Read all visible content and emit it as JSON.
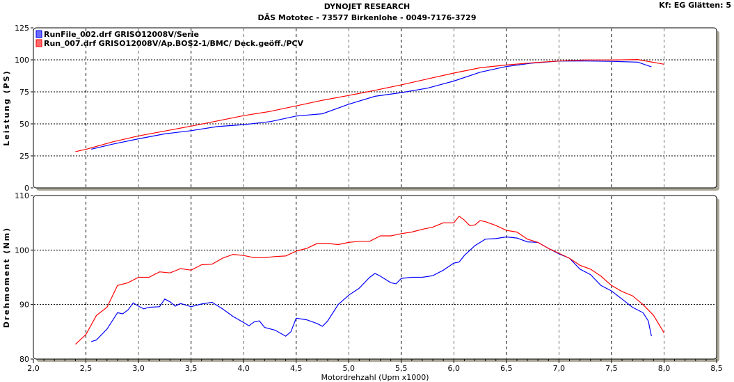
{
  "header": {
    "title": "DYNOJET RESEARCH",
    "subtitle": "DÄS Mototec - 73577 Birkenlohe  - 0049-7176-3729",
    "info": "Kf: EG  Glätten: 5"
  },
  "chart_data": [
    {
      "type": "line",
      "title": "Leistung",
      "ylabel": "Leistung (PS)",
      "xlabel": "Motordrehzahl (Upm x1000)",
      "xlim": [
        2.0,
        8.5
      ],
      "ylim": [
        0,
        125
      ],
      "yticks": [
        "0",
        "25",
        "50",
        "75",
        "100",
        "125"
      ],
      "ytick_values": [
        0,
        25,
        50,
        75,
        100,
        125
      ],
      "grid": true,
      "legend_position": "top-left",
      "series": [
        {
          "name": "RunFile_002.drf GRISO12008V/Serie",
          "color": "#0000ff",
          "x": [
            2.55,
            2.75,
            3.0,
            3.25,
            3.5,
            3.75,
            4.0,
            4.25,
            4.5,
            4.75,
            5.0,
            5.25,
            5.5,
            5.75,
            6.0,
            6.25,
            6.5,
            6.75,
            7.0,
            7.25,
            7.5,
            7.75,
            7.88
          ],
          "y": [
            30.2,
            34.1,
            38.3,
            42.2,
            44.7,
            47.9,
            49.4,
            51.7,
            56.1,
            57.9,
            65.3,
            71.5,
            74.4,
            77.9,
            83.4,
            90.3,
            94.8,
            97.5,
            99.0,
            99.1,
            98.8,
            98.2,
            94.5
          ]
        },
        {
          "name": "Run_007.drf GRISO12008V/Ap.BOS2-1/BMC/ Deck.geöff./PCV",
          "color": "#ff0000",
          "x": [
            2.4,
            2.5,
            2.75,
            3.0,
            3.25,
            3.5,
            3.75,
            4.0,
            4.25,
            4.5,
            4.75,
            5.0,
            5.25,
            5.5,
            5.75,
            6.0,
            6.25,
            6.5,
            6.75,
            7.0,
            7.25,
            7.5,
            7.75,
            8.0
          ],
          "y": [
            28.3,
            30.1,
            35.8,
            40.6,
            44.4,
            48.2,
            52.3,
            56.4,
            59.7,
            64.0,
            68.4,
            72.2,
            76.2,
            80.5,
            85.1,
            89.7,
            93.8,
            96.0,
            97.7,
            99.1,
            99.9,
            99.9,
            100.2,
            96.6
          ]
        }
      ]
    },
    {
      "type": "line",
      "title": "Drehmoment",
      "ylabel": "Drehmoment (Nm)",
      "xlabel": "Motordrehzahl (Upm x1000)",
      "xlim": [
        2.0,
        8.5
      ],
      "ylim": [
        80,
        110
      ],
      "xticks": [
        "2,0",
        "2,5",
        "3,0",
        "3,5",
        "4,0",
        "4,5",
        "5,0",
        "5,5",
        "6,0",
        "6,5",
        "7,0",
        "7,5",
        "8,0",
        "8,5"
      ],
      "xtick_values": [
        2.0,
        2.5,
        3.0,
        3.5,
        4.0,
        4.5,
        5.0,
        5.5,
        6.0,
        6.5,
        7.0,
        7.5,
        8.0,
        8.5
      ],
      "yticks": [
        "80",
        "90",
        "100",
        "110"
      ],
      "ytick_values": [
        80,
        90,
        100,
        110
      ],
      "grid": true,
      "series": [
        {
          "name": "RunFile_002.drf GRISO12008V/Serie",
          "color": "#0000ff",
          "x": [
            2.55,
            2.6,
            2.7,
            2.8,
            2.85,
            2.9,
            2.95,
            3.0,
            3.05,
            3.1,
            3.2,
            3.25,
            3.3,
            3.35,
            3.4,
            3.5,
            3.6,
            3.7,
            3.8,
            3.9,
            4.0,
            4.05,
            4.1,
            4.15,
            4.2,
            4.3,
            4.4,
            4.45,
            4.5,
            4.6,
            4.7,
            4.75,
            4.8,
            4.9,
            5.0,
            5.1,
            5.2,
            5.25,
            5.3,
            5.4,
            5.45,
            5.5,
            5.6,
            5.7,
            5.8,
            5.9,
            6.0,
            6.05,
            6.1,
            6.2,
            6.3,
            6.4,
            6.5,
            6.6,
            6.7,
            6.8,
            6.9,
            7.0,
            7.1,
            7.2,
            7.3,
            7.4,
            7.5,
            7.6,
            7.7,
            7.8,
            7.85,
            7.88
          ],
          "y": [
            83.2,
            83.5,
            85.5,
            88.5,
            88.3,
            89,
            90.3,
            89.7,
            89.2,
            89.5,
            89.6,
            91,
            90.5,
            89.7,
            90.2,
            89.6,
            90.1,
            90.4,
            89.2,
            87.8,
            86.7,
            86.1,
            86.8,
            87,
            85.8,
            85.3,
            84.2,
            85,
            87.5,
            87.2,
            86.5,
            86,
            87,
            90,
            91.7,
            93,
            95,
            95.7,
            95.2,
            94,
            93.8,
            94.8,
            95,
            95,
            95.3,
            96.3,
            97.6,
            97.8,
            99,
            100.8,
            102,
            102.1,
            102.4,
            102.2,
            101.5,
            101.4,
            100.3,
            99.3,
            98.5,
            96.5,
            95.5,
            93.5,
            92.5,
            91,
            89.5,
            88.5,
            87,
            84.2
          ]
        },
        {
          "name": "Run_007.drf GRISO12008V/Ap.BOS2-1/BMC/ Deck.geöff./PCV",
          "color": "#ff0000",
          "x": [
            2.4,
            2.5,
            2.6,
            2.7,
            2.8,
            2.9,
            3.0,
            3.1,
            3.2,
            3.3,
            3.4,
            3.5,
            3.6,
            3.7,
            3.8,
            3.9,
            4.0,
            4.1,
            4.2,
            4.3,
            4.4,
            4.5,
            4.6,
            4.7,
            4.8,
            4.9,
            5.0,
            5.1,
            5.2,
            5.3,
            5.4,
            5.5,
            5.6,
            5.7,
            5.8,
            5.9,
            6.0,
            6.05,
            6.1,
            6.15,
            6.2,
            6.25,
            6.3,
            6.4,
            6.5,
            6.6,
            6.7,
            6.8,
            6.9,
            7.0,
            7.1,
            7.2,
            7.3,
            7.4,
            7.5,
            7.6,
            7.7,
            7.8,
            7.9,
            8.0
          ],
          "y": [
            82.7,
            84.5,
            88,
            89.5,
            93.5,
            94,
            95,
            95,
            96,
            95.8,
            96.6,
            96.3,
            97.3,
            97.4,
            98.5,
            99.2,
            99,
            98.6,
            98.6,
            98.8,
            98.9,
            99.8,
            100.3,
            101.2,
            101.2,
            101,
            101.4,
            101.6,
            101.6,
            102.6,
            102.6,
            103,
            103.3,
            103.8,
            104.2,
            105,
            105,
            106.2,
            105.5,
            104.5,
            104.6,
            105.4,
            105.2,
            104.5,
            103.6,
            103.3,
            102,
            101.4,
            100.3,
            99.4,
            98.5,
            97.2,
            96.5,
            95.2,
            93.5,
            92.4,
            91.6,
            90,
            88,
            84.8
          ]
        }
      ]
    }
  ]
}
